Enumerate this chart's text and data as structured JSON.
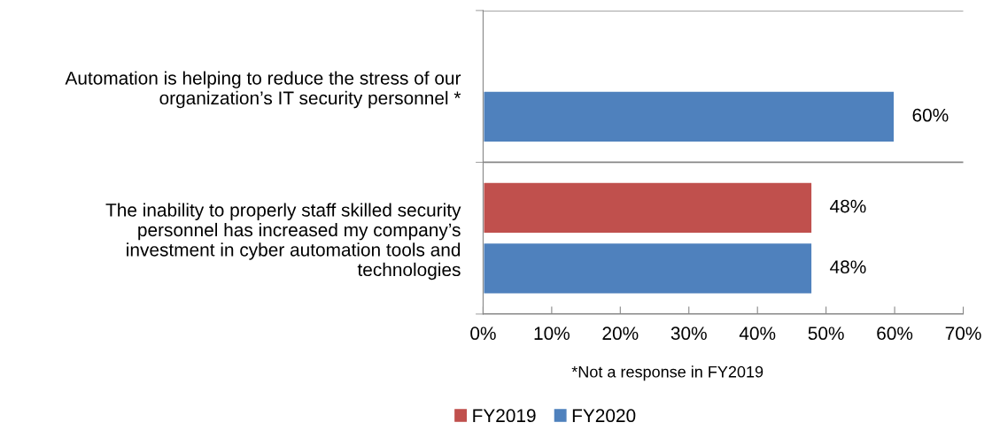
{
  "chart_data": {
    "type": "bar",
    "orientation": "horizontal",
    "categories": [
      "Automation is helping to reduce the stress of our\norganization’s IT security personnel *",
      "The inability to properly staff skilled security\npersonnel has increased my company’s\ninvestment in cyber automation tools and\ntechnologies"
    ],
    "series": [
      {
        "name": "FY2019",
        "color": "#c0504d",
        "values": [
          null,
          48
        ],
        "value_labels": [
          null,
          "48%"
        ]
      },
      {
        "name": "FY2020",
        "color": "#4f81bd",
        "values": [
          60,
          48
        ],
        "value_labels": [
          "60%",
          "48%"
        ]
      }
    ],
    "xlim": [
      0,
      70
    ],
    "xticks": [
      {
        "value": 0,
        "label": "0%"
      },
      {
        "value": 10,
        "label": "10%"
      },
      {
        "value": 20,
        "label": "20%"
      },
      {
        "value": 30,
        "label": "30%"
      },
      {
        "value": 40,
        "label": "40%"
      },
      {
        "value": 50,
        "label": "50%"
      },
      {
        "value": 60,
        "label": "60%"
      },
      {
        "value": 70,
        "label": "70%"
      }
    ],
    "grid": "y",
    "legend": "bottom",
    "annotations": [
      "*Not a response in FY2019"
    ]
  }
}
